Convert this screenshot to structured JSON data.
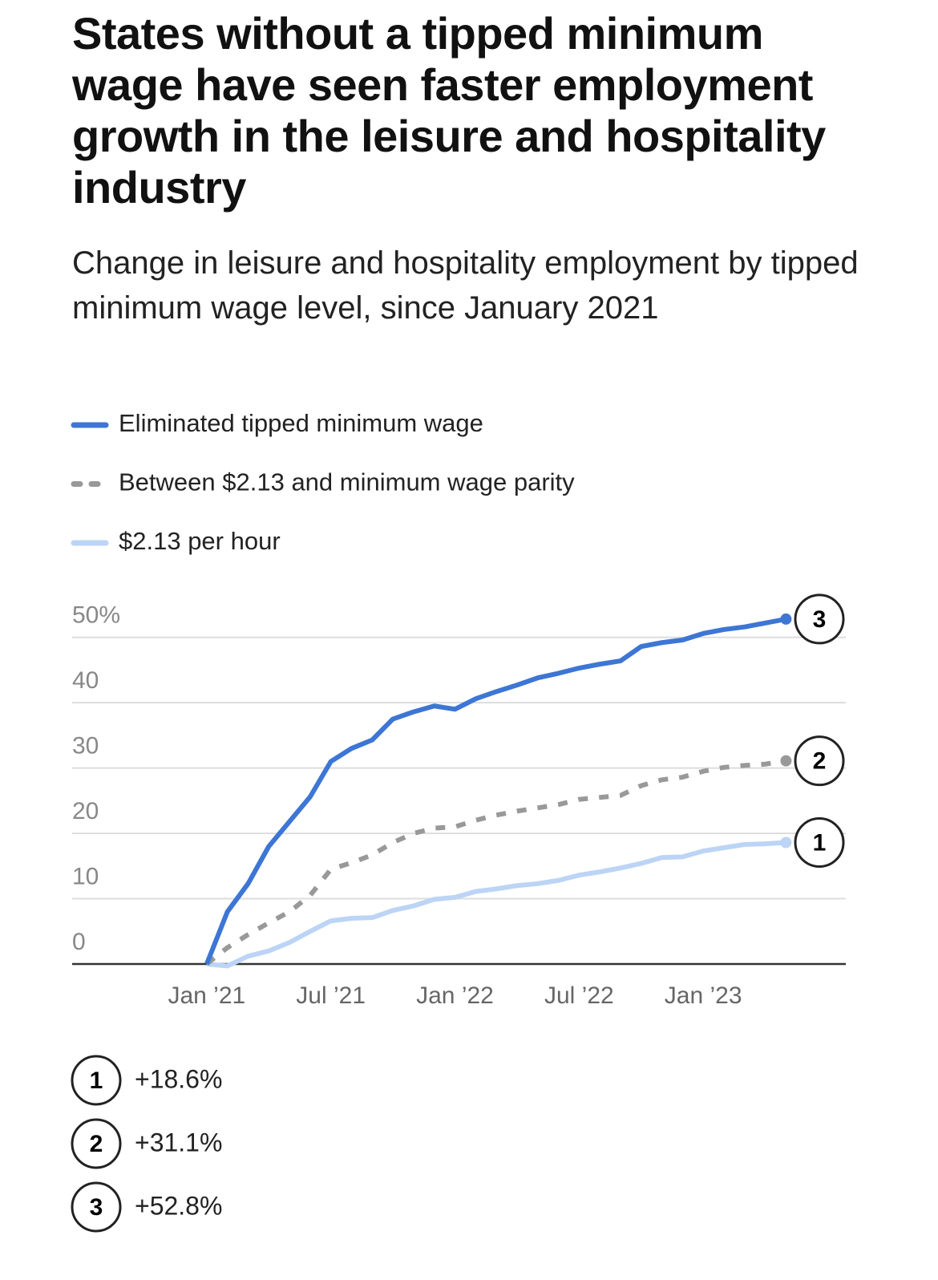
{
  "chart_data": {
    "type": "line",
    "title": "States without a tipped minimum wage have seen faster employment growth in the leisure and hospitality industry",
    "subtitle": "Change in leisure and hospitality employment by tipped minimum wage level, since January 2021",
    "x": [
      "2021-01",
      "2021-02",
      "2021-03",
      "2021-04",
      "2021-05",
      "2021-06",
      "2021-07",
      "2021-08",
      "2021-09",
      "2021-10",
      "2021-11",
      "2021-12",
      "2022-01",
      "2022-02",
      "2022-03",
      "2022-04",
      "2022-05",
      "2022-06",
      "2022-07",
      "2022-08",
      "2022-09",
      "2022-10",
      "2022-11",
      "2022-12",
      "2023-01",
      "2023-02",
      "2023-03",
      "2023-04",
      "2023-05"
    ],
    "xlim": [
      "2020-07",
      "2023-07"
    ],
    "xticks": [
      {
        "value": "2021-01",
        "label": "Jan ’21"
      },
      {
        "value": "2021-07",
        "label": "Jul ’21"
      },
      {
        "value": "2022-01",
        "label": "Jan ’22"
      },
      {
        "value": "2022-07",
        "label": "Jul ’22"
      },
      {
        "value": "2023-01",
        "label": "Jan ’23"
      }
    ],
    "ylim": [
      0,
      55
    ],
    "yticks": [
      0,
      10,
      20,
      30,
      40,
      {
        "value": 50,
        "label": "50%"
      }
    ],
    "grid": true,
    "series": [
      {
        "name": "Eliminated tipped minimum wage",
        "color": "#3d76d4",
        "dash": false,
        "marker": "3",
        "end_label": "+52.8%",
        "values": [
          0,
          8,
          12.3,
          18,
          21.8,
          25.6,
          31,
          33,
          34.3,
          37.5,
          38.6,
          39.5,
          39,
          40.6,
          41.7,
          42.7,
          43.8,
          44.5,
          45.3,
          45.9,
          46.4,
          48.6,
          49.2,
          49.6,
          50.6,
          51.2,
          51.6,
          52.2,
          52.8
        ]
      },
      {
        "name": "Between $2.13 and minimum wage parity",
        "color": "#999999",
        "dash": true,
        "marker": "2",
        "end_label": "+31.1%",
        "values": [
          0,
          2.5,
          4.5,
          6.3,
          8,
          10.5,
          14.5,
          15.5,
          16.7,
          18.6,
          20,
          20.8,
          21,
          22,
          22.8,
          23.4,
          23.9,
          24.4,
          25.2,
          25.5,
          25.8,
          27.3,
          28.2,
          28.6,
          29.5,
          30.1,
          30.4,
          30.6,
          31.1
        ]
      },
      {
        "name": "$2.13 per hour",
        "color": "#bcd4f5",
        "dash": false,
        "marker": "1",
        "end_label": "+18.6%",
        "values": [
          0,
          -0.3,
          1.2,
          2,
          3.3,
          5,
          6.6,
          7,
          7.1,
          8.2,
          8.9,
          9.9,
          10.2,
          11.1,
          11.5,
          12,
          12.3,
          12.8,
          13.6,
          14.1,
          14.7,
          15.4,
          16.3,
          16.4,
          17.3,
          17.8,
          18.3,
          18.4,
          18.6
        ]
      }
    ]
  }
}
